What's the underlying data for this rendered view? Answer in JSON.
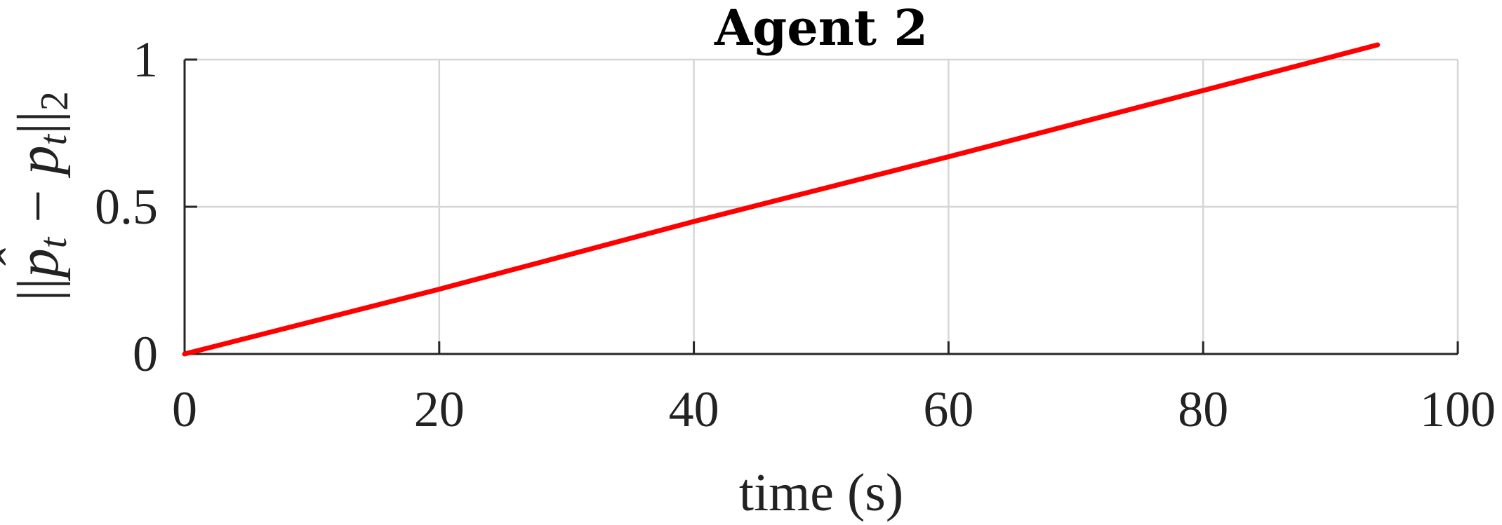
{
  "chart_data": {
    "type": "line",
    "title": "Agent 2",
    "xlabel": "time (s)",
    "ylabel": {
      "open": "||",
      "hat": "ˆ",
      "p1": "p",
      "sub1": "t",
      "minus": " − ",
      "p2": "p",
      "sub2": "t",
      "close": "||",
      "norm": "2"
    },
    "xlim": [
      0,
      100
    ],
    "ylim": [
      0,
      1
    ],
    "xticks": [
      0,
      20,
      40,
      60,
      80,
      100
    ],
    "xtick_labels": [
      "0",
      "20",
      "40",
      "60",
      "80",
      "100"
    ],
    "yticks": [
      0,
      0.5,
      1
    ],
    "ytick_labels": [
      "0",
      "0.5",
      "1"
    ],
    "grid": true,
    "legend": "none",
    "series": [
      {
        "color": "#ff0000",
        "x": [
          0,
          20,
          40,
          60,
          80,
          93.7
        ],
        "y": [
          0,
          0.22,
          0.45,
          0.67,
          0.895,
          1.05
        ]
      }
    ]
  }
}
